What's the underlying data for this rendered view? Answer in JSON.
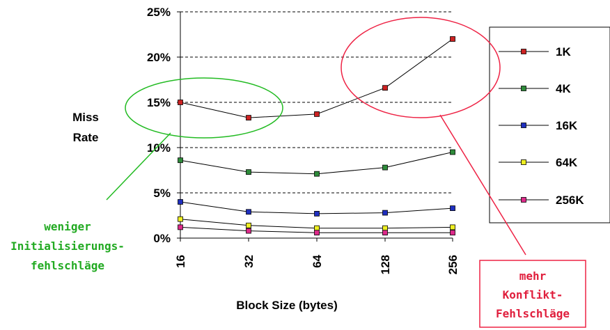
{
  "chart_data": {
    "type": "line",
    "xlabel": "Block Size (bytes)",
    "ylabel_lines": [
      "Miss",
      "Rate"
    ],
    "categories": [
      "16",
      "32",
      "64",
      "128",
      "256"
    ],
    "ylim": [
      0,
      25
    ],
    "yticks": [
      0,
      5,
      10,
      15,
      20,
      25
    ],
    "ytick_labels": [
      "0%",
      "5%",
      "10%",
      "15%",
      "20%",
      "25%"
    ],
    "grid": "horizontal-dashed",
    "legend_position": "right",
    "series": [
      {
        "name": "1K",
        "color": "#cc2222",
        "values": [
          15.0,
          13.3,
          13.7,
          16.6,
          22.0
        ]
      },
      {
        "name": "4K",
        "color": "#2e8b3a",
        "values": [
          8.6,
          7.3,
          7.1,
          7.8,
          9.5
        ]
      },
      {
        "name": "16K",
        "color": "#1f2fbf",
        "values": [
          4.0,
          2.9,
          2.7,
          2.8,
          3.3
        ]
      },
      {
        "name": "64K",
        "color": "#eeee22",
        "values": [
          2.1,
          1.4,
          1.1,
          1.1,
          1.2
        ]
      },
      {
        "name": "256K",
        "color": "#dd2a8a",
        "values": [
          1.2,
          0.8,
          0.6,
          0.6,
          0.6
        ]
      }
    ],
    "annotations": [
      {
        "lines": [
          "weniger",
          "Initialisierungs-",
          "fehlschläge"
        ],
        "color": "#22aa22"
      },
      {
        "lines": [
          "mehr",
          "Konflikt-",
          "Fehlschläge"
        ],
        "color": "#e01e3c"
      }
    ]
  }
}
